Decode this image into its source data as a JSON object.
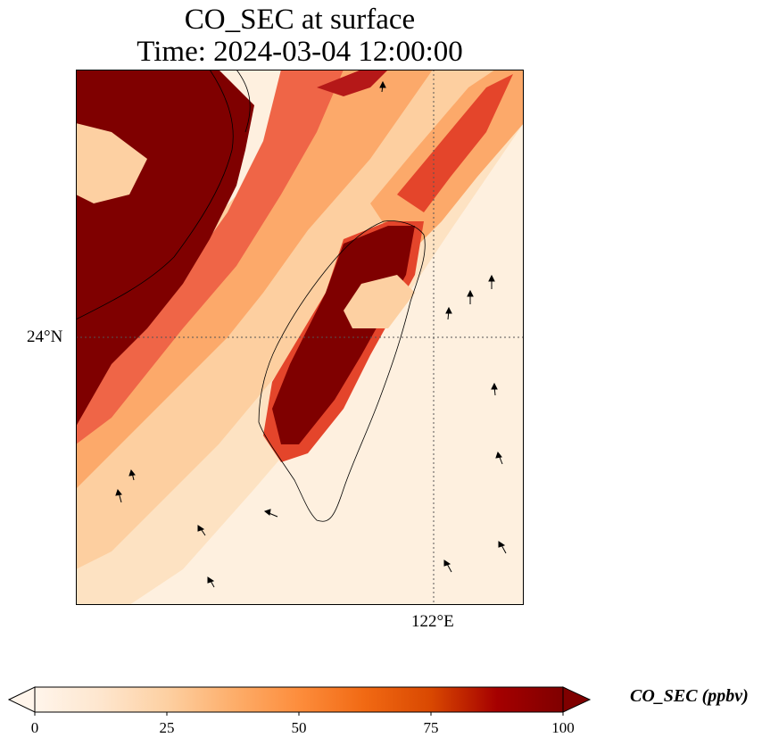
{
  "title": {
    "line1": "CO_SEC at surface",
    "line2": "Time: 2024-03-04 12:00:00"
  },
  "axes": {
    "lat_label": "24°N",
    "lon_label": "122°E"
  },
  "colorbar": {
    "label": "CO_SEC (ppbv)",
    "ticks": [
      "0",
      "25",
      "50",
      "75",
      "100"
    ],
    "min": 0,
    "max": 100,
    "extend": "both",
    "colormap": [
      "#fff5eb",
      "#fee6ce",
      "#fdd0a2",
      "#fdae6b",
      "#fd8d3c",
      "#f16913",
      "#d94801",
      "#a50000",
      "#7f0000"
    ]
  },
  "map": {
    "colormap_name": "OrRd",
    "gridline_style": "dotted",
    "features": [
      "coastline",
      "wind-vectors",
      "concentration-field"
    ]
  }
}
